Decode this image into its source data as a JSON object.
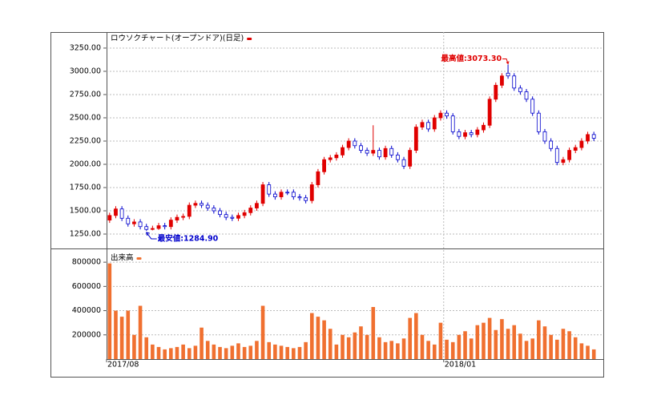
{
  "chart_data": [
    {
      "type": "candlestick",
      "name": "ロウソクチャート(オープンドア)(日足)",
      "up_color": "#e00000",
      "down_color": "#0000cc",
      "high_label": "最高値:3073.30",
      "low_label": "最安値:1284.90",
      "grid": true,
      "ylim": [
        1095,
        3422
      ],
      "yticks": [
        {
          "value": 1250,
          "label": "1250.00"
        },
        {
          "value": 1500,
          "label": "1500.00"
        },
        {
          "value": 1750,
          "label": "1750.00"
        },
        {
          "value": 2000,
          "label": "2000.00"
        },
        {
          "value": 2250,
          "label": "2250.00"
        },
        {
          "value": 2500,
          "label": "2500.00"
        },
        {
          "value": 2750,
          "label": "2750.00"
        },
        {
          "value": 3000,
          "label": "3000.00"
        },
        {
          "value": 3250,
          "label": "3250.00"
        }
      ],
      "open": [
        1400,
        1450,
        1520,
        1420,
        1360,
        1380,
        1330,
        1300,
        1310,
        1340,
        1330,
        1400,
        1430,
        1440,
        1560,
        1580,
        1560,
        1530,
        1500,
        1460,
        1430,
        1420,
        1450,
        1480,
        1530,
        1580,
        1780,
        1680,
        1650,
        1700,
        1700,
        1650,
        1640,
        1610,
        1780,
        1920,
        2050,
        2070,
        2100,
        2180,
        2250,
        2200,
        2150,
        2120,
        2150,
        2080,
        2170,
        2100,
        2050,
        1980,
        2150,
        2400,
        2450,
        2380,
        2500,
        2550,
        2520,
        2350,
        2300,
        2340,
        2320,
        2370,
        2420,
        2700,
        2850,
        2980,
        2950,
        2820,
        2780,
        2700,
        2550,
        2350,
        2250,
        2170,
        2020,
        2050,
        2150,
        2180,
        2250,
        2320
      ],
      "high": [
        1480,
        1550,
        1550,
        1450,
        1410,
        1410,
        1360,
        1340,
        1370,
        1370,
        1430,
        1460,
        1470,
        1590,
        1610,
        1610,
        1590,
        1560,
        1530,
        1490,
        1460,
        1480,
        1510,
        1560,
        1610,
        1810,
        1810,
        1710,
        1730,
        1730,
        1730,
        1680,
        1670,
        1810,
        1950,
        2080,
        2100,
        2130,
        2210,
        2280,
        2280,
        2230,
        2180,
        2420,
        2180,
        2200,
        2200,
        2130,
        2080,
        2180,
        2430,
        2480,
        2480,
        2530,
        2580,
        2580,
        2550,
        2380,
        2370,
        2370,
        2400,
        2450,
        2730,
        2880,
        2980,
        3073.3,
        2980,
        2850,
        2810,
        2730,
        2580,
        2380,
        2280,
        2200,
        2080,
        2180,
        2210,
        2280,
        2350,
        2350
      ],
      "low": [
        1370,
        1420,
        1390,
        1330,
        1330,
        1300,
        1284.9,
        1290,
        1295,
        1300,
        1300,
        1370,
        1400,
        1410,
        1530,
        1530,
        1500,
        1470,
        1430,
        1400,
        1390,
        1390,
        1420,
        1450,
        1500,
        1550,
        1650,
        1620,
        1620,
        1670,
        1620,
        1610,
        1580,
        1580,
        1750,
        1890,
        2020,
        2040,
        2070,
        2150,
        2170,
        2120,
        2090,
        2090,
        2050,
        2050,
        2070,
        2020,
        1950,
        1950,
        2120,
        2370,
        2350,
        2350,
        2470,
        2490,
        2320,
        2270,
        2270,
        2290,
        2290,
        2340,
        2390,
        2670,
        2820,
        2920,
        2790,
        2750,
        2670,
        2520,
        2320,
        2220,
        2140,
        1990,
        1990,
        2020,
        2120,
        2150,
        2220,
        2250
      ],
      "close": [
        1450,
        1520,
        1420,
        1360,
        1380,
        1330,
        1300,
        1310,
        1340,
        1330,
        1400,
        1430,
        1440,
        1560,
        1580,
        1560,
        1530,
        1500,
        1460,
        1430,
        1420,
        1450,
        1480,
        1530,
        1580,
        1780,
        1680,
        1650,
        1700,
        1700,
        1650,
        1640,
        1610,
        1780,
        1920,
        2050,
        2070,
        2100,
        2180,
        2250,
        2200,
        2150,
        2120,
        2150,
        2080,
        2170,
        2100,
        2050,
        1980,
        2150,
        2400,
        2450,
        2380,
        2500,
        2550,
        2520,
        2350,
        2300,
        2340,
        2320,
        2370,
        2420,
        2700,
        2850,
        2950,
        2950,
        2820,
        2780,
        2700,
        2550,
        2350,
        2250,
        2170,
        2020,
        2050,
        2150,
        2180,
        2250,
        2320,
        2280
      ]
    },
    {
      "type": "bar",
      "name": "出来高",
      "color": "#f07030",
      "grid": true,
      "ylim": [
        0,
        900000
      ],
      "yticks": [
        200000,
        400000,
        600000,
        800000
      ],
      "categories": [
        "2017/08",
        null,
        null,
        null,
        null,
        null,
        null,
        null,
        null,
        null,
        null,
        null,
        null,
        null,
        null,
        null,
        null,
        null,
        null,
        null,
        null,
        null,
        null,
        null,
        null,
        null,
        null,
        null,
        null,
        null,
        null,
        null,
        null,
        null,
        null,
        null,
        null,
        null,
        null,
        null,
        null,
        null,
        null,
        null,
        null,
        null,
        null,
        null,
        null,
        null,
        null,
        null,
        null,
        null,
        null,
        "2018/01",
        null,
        null,
        null,
        null,
        null,
        null,
        null,
        null,
        null,
        null,
        null,
        null,
        null,
        null,
        null,
        null,
        null,
        null,
        null,
        null,
        null,
        null,
        null,
        null
      ],
      "values": [
        790000,
        400000,
        350000,
        400000,
        200000,
        440000,
        180000,
        120000,
        100000,
        80000,
        90000,
        100000,
        120000,
        90000,
        110000,
        260000,
        150000,
        120000,
        100000,
        90000,
        110000,
        130000,
        100000,
        110000,
        150000,
        440000,
        140000,
        120000,
        110000,
        100000,
        90000,
        100000,
        140000,
        380000,
        350000,
        320000,
        250000,
        120000,
        200000,
        180000,
        220000,
        270000,
        200000,
        430000,
        180000,
        140000,
        150000,
        130000,
        170000,
        340000,
        380000,
        200000,
        150000,
        120000,
        300000,
        160000,
        140000,
        200000,
        230000,
        170000,
        280000,
        300000,
        340000,
        240000,
        330000,
        250000,
        280000,
        210000,
        150000,
        170000,
        320000,
        270000,
        200000,
        160000,
        250000,
        230000,
        180000,
        130000,
        110000,
        80000
      ]
    }
  ]
}
